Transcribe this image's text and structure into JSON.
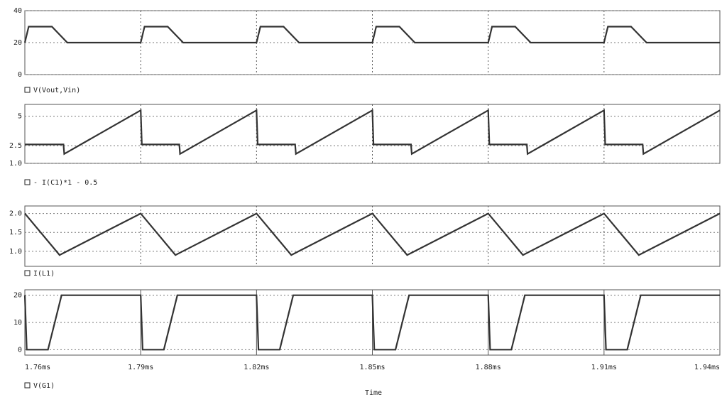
{
  "chart_data": [
    {
      "type": "line",
      "ylim": [
        0,
        40
      ],
      "yticks": [
        0,
        20,
        40
      ],
      "xlim": [
        1.76,
        1.94
      ],
      "xticks": [
        1.76,
        1.79,
        1.82,
        1.85,
        1.88,
        1.91,
        1.94
      ],
      "x": [
        1.76,
        1.761,
        1.767,
        1.771,
        1.79,
        1.791,
        1.797,
        1.801,
        1.82,
        1.821,
        1.827,
        1.831,
        1.85,
        1.851,
        1.857,
        1.861,
        1.88,
        1.881,
        1.887,
        1.891,
        1.91,
        1.911,
        1.917,
        1.921,
        1.94
      ],
      "series": [
        {
          "name": "V(Vout,Vin)",
          "color": "#333333",
          "values": [
            20,
            30,
            30,
            20,
            20,
            30,
            30,
            20,
            20,
            30,
            30,
            20,
            20,
            30,
            30,
            20,
            20,
            30,
            30,
            20,
            20,
            30,
            30,
            20,
            20
          ]
        }
      ]
    },
    {
      "type": "line",
      "ylim": [
        1,
        6
      ],
      "yticks": [
        {
          "value": 1,
          "label": "1.0"
        },
        2.5,
        5
      ],
      "xlim": [
        1.76,
        1.94
      ],
      "xticks": [
        1.76,
        1.79,
        1.82,
        1.85,
        1.88,
        1.91,
        1.94
      ],
      "x": [
        1.76,
        1.7603,
        1.77,
        1.7702,
        1.79,
        1.7903,
        1.8,
        1.8002,
        1.82,
        1.8203,
        1.83,
        1.8302,
        1.85,
        1.8503,
        1.86,
        1.8602,
        1.88,
        1.8803,
        1.89,
        1.8902,
        1.91,
        1.9103,
        1.92,
        1.9202,
        1.94
      ],
      "series": [
        {
          "name": "- I(C1)*1 - 0.5",
          "color": "#333333",
          "values": [
            2.6,
            2.6,
            2.6,
            1.8,
            5.5,
            2.6,
            2.6,
            1.8,
            5.5,
            2.6,
            2.6,
            1.8,
            5.5,
            2.6,
            2.6,
            1.8,
            5.5,
            2.6,
            2.6,
            1.8,
            5.5,
            2.6,
            2.6,
            1.8,
            5.5
          ]
        }
      ]
    },
    {
      "type": "line",
      "ylim": [
        0.6,
        2.2
      ],
      "yticks": [
        {
          "value": 1,
          "label": "1.0"
        },
        1.5,
        {
          "value": 2,
          "label": "2.0"
        }
      ],
      "xlim": [
        1.76,
        1.94
      ],
      "xticks": [
        1.76,
        1.79,
        1.82,
        1.85,
        1.88,
        1.91,
        1.94
      ],
      "x": [
        1.76,
        1.769,
        1.79,
        1.799,
        1.82,
        1.829,
        1.85,
        1.859,
        1.88,
        1.889,
        1.91,
        1.919,
        1.94
      ],
      "series": [
        {
          "name": "I(L1)",
          "color": "#333333",
          "values": [
            2,
            0.9,
            2,
            0.9,
            2,
            0.9,
            2,
            0.9,
            2,
            0.9,
            2,
            0.9,
            2
          ]
        }
      ]
    },
    {
      "type": "line",
      "ylim": [
        -2,
        22
      ],
      "yticks": [
        0,
        10,
        20
      ],
      "xlim": [
        1.76,
        1.94
      ],
      "xticks": [
        {
          "value": 1.76,
          "label": "1.76ms"
        },
        {
          "value": 1.79,
          "label": "1.79ms"
        },
        {
          "value": 1.82,
          "label": "1.82ms"
        },
        {
          "value": 1.85,
          "label": "1.85ms"
        },
        {
          "value": 1.88,
          "label": "1.88ms"
        },
        {
          "value": 1.91,
          "label": "1.91ms"
        },
        {
          "value": 1.94,
          "label": "1.94ms"
        }
      ],
      "xlabel": "Time",
      "x": [
        1.76,
        1.7605,
        1.766,
        1.7695,
        1.79,
        1.7905,
        1.796,
        1.7995,
        1.82,
        1.8205,
        1.826,
        1.8295,
        1.85,
        1.8505,
        1.856,
        1.8595,
        1.88,
        1.8805,
        1.886,
        1.8895,
        1.91,
        1.9105,
        1.916,
        1.9195,
        1.94
      ],
      "series": [
        {
          "name": "V(G1)",
          "color": "#333333",
          "values": [
            20,
            0,
            0,
            20,
            20,
            0,
            0,
            20,
            20,
            0,
            0,
            20,
            20,
            0,
            0,
            20,
            20,
            0,
            0,
            20,
            20,
            0,
            0,
            20,
            20
          ]
        }
      ]
    }
  ]
}
